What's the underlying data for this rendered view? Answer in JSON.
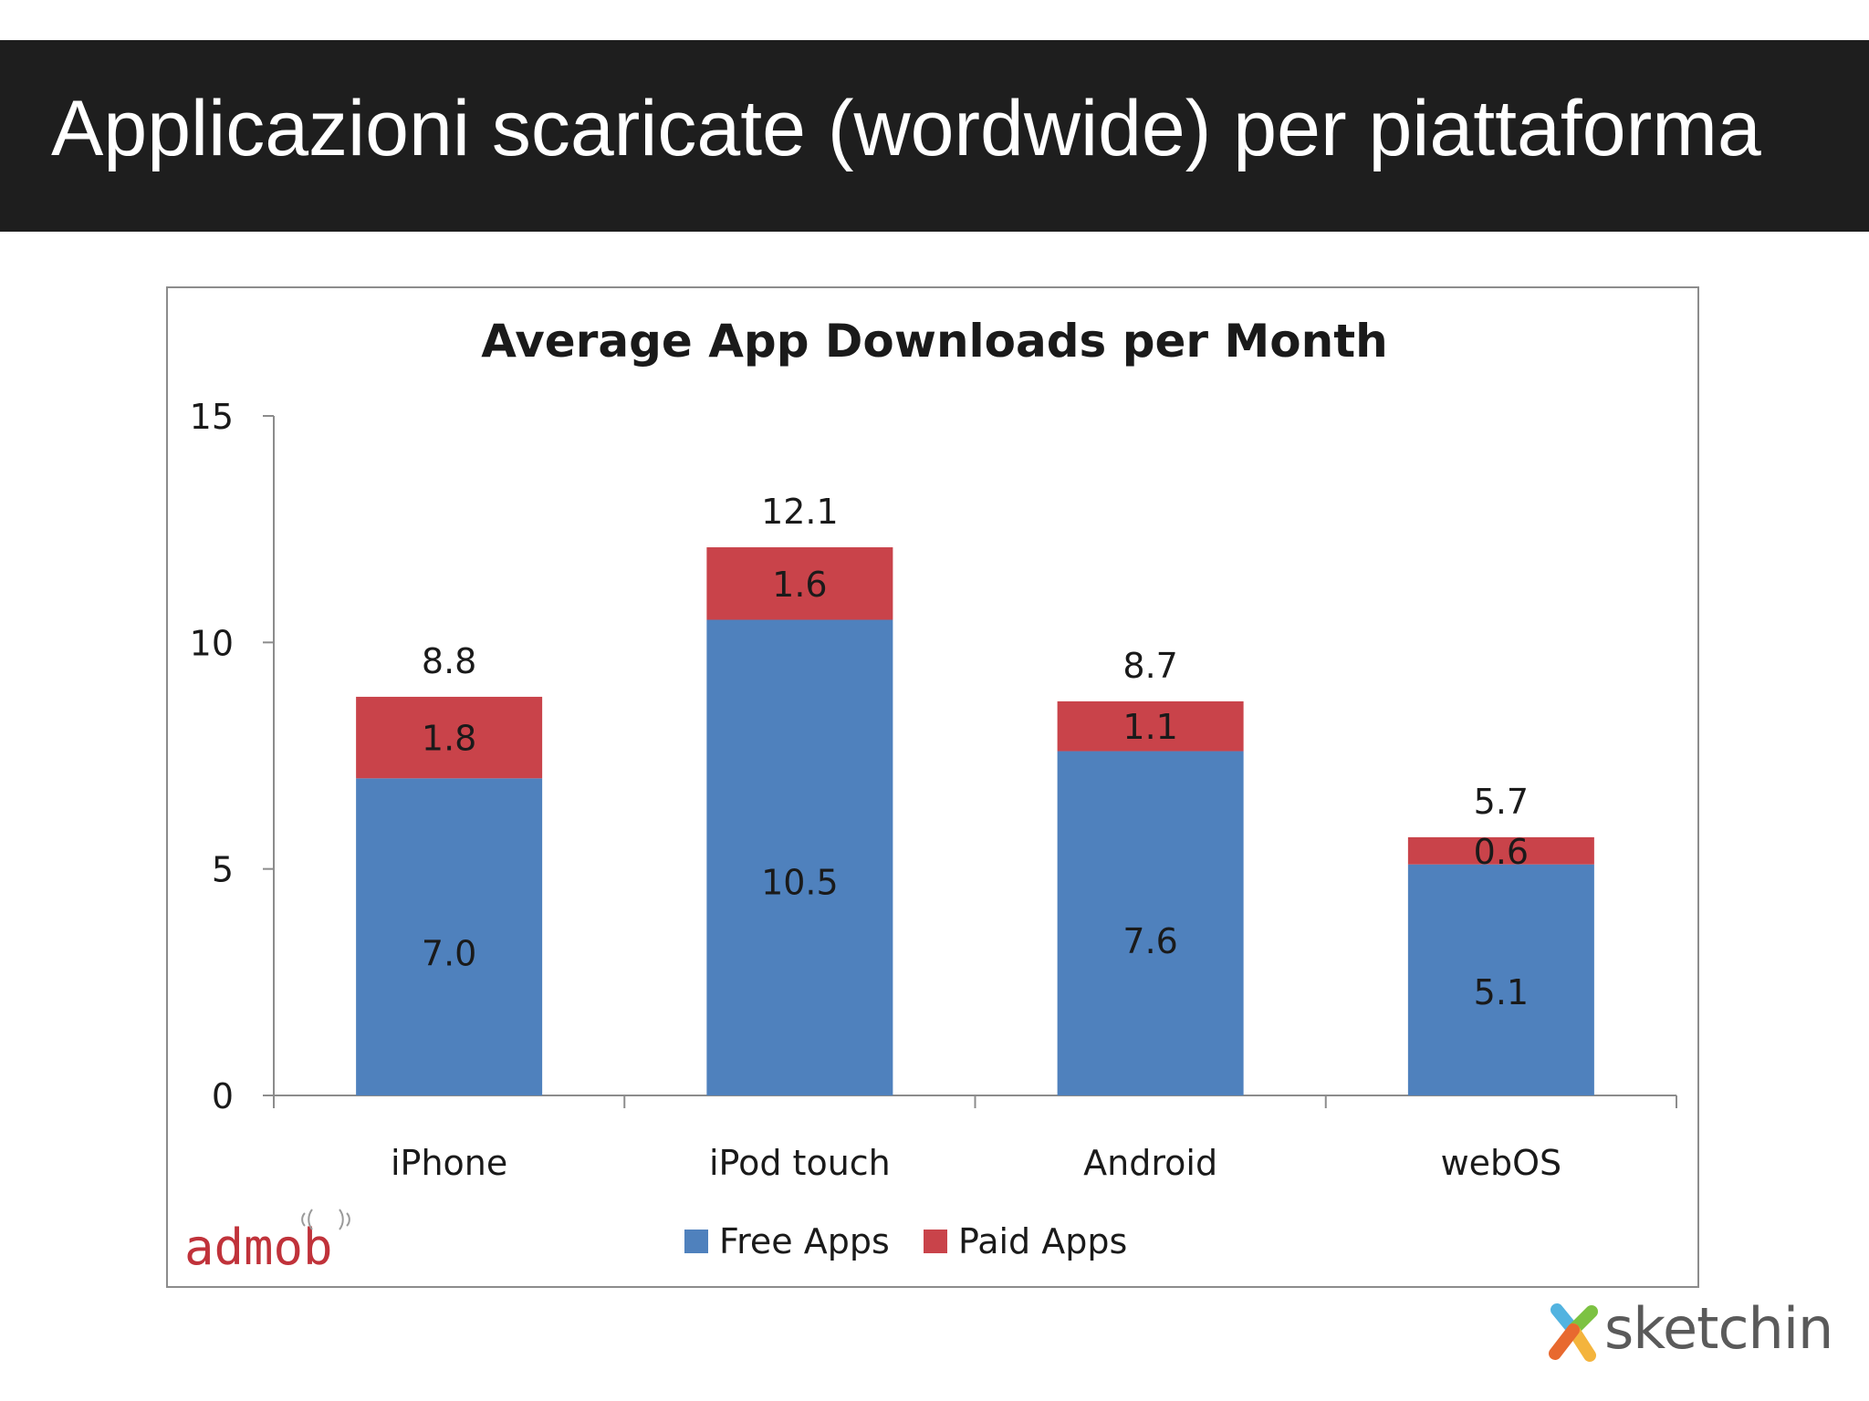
{
  "slide": {
    "title": "Applicazioni scaricate (wordwide) per piattaforma",
    "footer_logo_text": "sketchin"
  },
  "chart_data": {
    "type": "bar",
    "stacked": true,
    "title": "Average App Downloads per Month",
    "categories": [
      "iPhone",
      "iPod touch",
      "Android",
      "webOS"
    ],
    "series": [
      {
        "name": "Free Apps",
        "color": "#4f81bd",
        "values": [
          7.0,
          10.5,
          7.6,
          5.1
        ],
        "labels": [
          "7.0",
          "10.5",
          "7.6",
          "5.1"
        ]
      },
      {
        "name": "Paid Apps",
        "color": "#c9434a",
        "values": [
          1.8,
          1.6,
          1.1,
          0.6
        ],
        "labels": [
          "1.8",
          "1.6",
          "1.1",
          "0.6"
        ]
      }
    ],
    "totals": [
      "8.8",
      "12.1",
      "8.7",
      "5.7"
    ],
    "ylim": [
      0,
      15
    ],
    "yticks": [
      "0",
      "5",
      "10",
      "15"
    ],
    "xlabel": "",
    "ylabel": "",
    "grid": false,
    "legend_position": "bottom",
    "source_logo_text": "admob"
  }
}
